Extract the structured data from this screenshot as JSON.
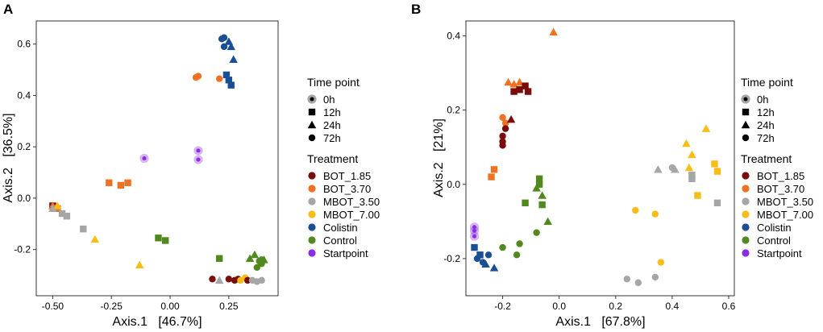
{
  "colors": {
    "BOT_1.85": "#7b0c0c",
    "BOT_3.70": "#ee7222",
    "MBOT_3.50": "#a6a6a6",
    "MBOT_7.00": "#f9bd17",
    "Colistin": "#1a4f96",
    "Control": "#52891f",
    "Startpoint": "#8b2be2"
  },
  "legend": {
    "time_title": "Time point",
    "time_points": [
      {
        "label": "0h",
        "shape": "circle-ring"
      },
      {
        "label": "12h",
        "shape": "square"
      },
      {
        "label": "24h",
        "shape": "triangle"
      },
      {
        "label": "72h",
        "shape": "circle"
      }
    ],
    "treatment_title": "Treatment",
    "treatments": [
      "BOT_1.85",
      "BOT_3.70",
      "MBOT_3.50",
      "MBOT_7.00",
      "Colistin",
      "Control",
      "Startpoint"
    ]
  },
  "chart_data": [
    {
      "type": "scatter",
      "panel": "A",
      "xlabel": "Axis.1   [46.7%]",
      "ylabel": "Axis.2   [36.5%]",
      "xlim": [
        -0.57,
        0.46
      ],
      "ylim": [
        -0.38,
        0.69
      ],
      "xticks": [
        {
          "value": -0.5,
          "label": "-0.50"
        },
        {
          "value": -0.25,
          "label": "-0.25"
        },
        {
          "value": 0.0,
          "label": "0.00"
        },
        {
          "value": 0.25,
          "label": "0.25"
        }
      ],
      "yticks": [
        {
          "value": -0.2,
          "label": "-0.2"
        },
        {
          "value": 0.0,
          "label": "0.0"
        },
        {
          "value": 0.2,
          "label": "0.2"
        },
        {
          "value": 0.4,
          "label": "0.4"
        },
        {
          "value": 0.6,
          "label": "0.6"
        }
      ],
      "points": [
        {
          "x": -0.5,
          "y": -0.03,
          "group": "BOT_1.85",
          "time": "12h"
        },
        {
          "x": -0.49,
          "y": -0.04,
          "group": "BOT_1.85",
          "time": "24h"
        },
        {
          "x": -0.5,
          "y": -0.03,
          "group": "BOT_3.70",
          "time": "24h"
        },
        {
          "x": -0.48,
          "y": -0.04,
          "group": "BOT_3.70",
          "time": "12h"
        },
        {
          "x": -0.48,
          "y": -0.03,
          "group": "MBOT_7.00",
          "time": "24h"
        },
        {
          "x": -0.5,
          "y": -0.04,
          "group": "MBOT_3.50",
          "time": "24h"
        },
        {
          "x": -0.46,
          "y": -0.06,
          "group": "MBOT_3.50",
          "time": "12h"
        },
        {
          "x": -0.44,
          "y": -0.07,
          "group": "MBOT_3.50",
          "time": "12h"
        },
        {
          "x": -0.37,
          "y": -0.12,
          "group": "MBOT_3.50",
          "time": "12h"
        },
        {
          "x": -0.32,
          "y": -0.16,
          "group": "MBOT_7.00",
          "time": "24h"
        },
        {
          "x": -0.13,
          "y": -0.26,
          "group": "MBOT_7.00",
          "time": "24h"
        },
        {
          "x": -0.26,
          "y": 0.06,
          "group": "BOT_3.70",
          "time": "12h"
        },
        {
          "x": -0.21,
          "y": 0.05,
          "group": "BOT_3.70",
          "time": "12h"
        },
        {
          "x": -0.18,
          "y": 0.06,
          "group": "BOT_3.70",
          "time": "12h"
        },
        {
          "x": -0.05,
          "y": -0.155,
          "group": "Control",
          "time": "12h"
        },
        {
          "x": -0.02,
          "y": -0.165,
          "group": "Control",
          "time": "12h"
        },
        {
          "x": -0.11,
          "y": 0.155,
          "group": "Startpoint",
          "time": "0h"
        },
        {
          "x": 0.12,
          "y": 0.185,
          "group": "Startpoint",
          "time": "0h"
        },
        {
          "x": 0.12,
          "y": 0.15,
          "group": "Startpoint",
          "time": "0h"
        },
        {
          "x": 0.11,
          "y": 0.47,
          "group": "BOT_3.70",
          "time": "72h"
        },
        {
          "x": 0.12,
          "y": 0.475,
          "group": "BOT_3.70",
          "time": "72h"
        },
        {
          "x": 0.21,
          "y": 0.465,
          "group": "BOT_3.70",
          "time": "72h"
        },
        {
          "x": 0.22,
          "y": 0.62,
          "group": "Colistin",
          "time": "72h"
        },
        {
          "x": 0.23,
          "y": 0.625,
          "group": "Colistin",
          "time": "72h"
        },
        {
          "x": 0.23,
          "y": 0.59,
          "group": "Colistin",
          "time": "72h"
        },
        {
          "x": 0.25,
          "y": 0.61,
          "group": "Colistin",
          "time": "24h"
        },
        {
          "x": 0.26,
          "y": 0.59,
          "group": "Colistin",
          "time": "24h"
        },
        {
          "x": 0.27,
          "y": 0.54,
          "group": "Colistin",
          "time": "24h"
        },
        {
          "x": 0.24,
          "y": 0.48,
          "group": "Colistin",
          "time": "12h"
        },
        {
          "x": 0.25,
          "y": 0.46,
          "group": "Colistin",
          "time": "12h"
        },
        {
          "x": 0.26,
          "y": 0.44,
          "group": "Colistin",
          "time": "12h"
        },
        {
          "x": 0.21,
          "y": -0.235,
          "group": "Control",
          "time": "12h"
        },
        {
          "x": 0.18,
          "y": -0.315,
          "group": "BOT_1.85",
          "time": "72h"
        },
        {
          "x": 0.21,
          "y": -0.32,
          "group": "MBOT_3.50",
          "time": "24h"
        },
        {
          "x": 0.25,
          "y": -0.315,
          "group": "BOT_1.85",
          "time": "72h"
        },
        {
          "x": 0.275,
          "y": -0.32,
          "group": "BOT_1.85",
          "time": "72h"
        },
        {
          "x": 0.29,
          "y": -0.315,
          "group": "BOT_1.85",
          "time": "72h"
        },
        {
          "x": 0.3,
          "y": -0.32,
          "group": "MBOT_7.00",
          "time": "72h"
        },
        {
          "x": 0.32,
          "y": -0.31,
          "group": "MBOT_7.00",
          "time": "72h"
        },
        {
          "x": 0.33,
          "y": -0.32,
          "group": "BOT_1.85",
          "time": "72h"
        },
        {
          "x": 0.35,
          "y": -0.32,
          "group": "MBOT_3.50",
          "time": "72h"
        },
        {
          "x": 0.37,
          "y": -0.325,
          "group": "MBOT_3.50",
          "time": "72h"
        },
        {
          "x": 0.39,
          "y": -0.32,
          "group": "MBOT_3.50",
          "time": "72h"
        },
        {
          "x": 0.36,
          "y": -0.22,
          "group": "Control",
          "time": "24h"
        },
        {
          "x": 0.38,
          "y": -0.245,
          "group": "Control",
          "time": "72h"
        },
        {
          "x": 0.39,
          "y": -0.24,
          "group": "Control",
          "time": "72h"
        },
        {
          "x": 0.4,
          "y": -0.24,
          "group": "Control",
          "time": "24h"
        },
        {
          "x": 0.37,
          "y": -0.27,
          "group": "Control",
          "time": "72h"
        },
        {
          "x": 0.39,
          "y": -0.255,
          "group": "Control",
          "time": "72h"
        },
        {
          "x": 0.34,
          "y": -0.235,
          "group": "Control",
          "time": "24h"
        }
      ]
    },
    {
      "type": "scatter",
      "panel": "B",
      "xlabel": "Axis.1   [67.8%]",
      "ylabel": "Axis.2   [21%]",
      "xlim": [
        -0.33,
        0.62
      ],
      "ylim": [
        -0.3,
        0.44
      ],
      "xticks": [
        {
          "value": -0.2,
          "label": "-0.2"
        },
        {
          "value": 0.0,
          "label": "0.0"
        },
        {
          "value": 0.2,
          "label": "0.2"
        },
        {
          "value": 0.4,
          "label": "0.4"
        },
        {
          "value": 0.6,
          "label": "0.6"
        }
      ],
      "yticks": [
        {
          "value": -0.2,
          "label": "-0.2"
        },
        {
          "value": 0.0,
          "label": "0.0"
        },
        {
          "value": 0.2,
          "label": "0.2"
        },
        {
          "value": 0.4,
          "label": "0.4"
        }
      ],
      "points": [
        {
          "x": -0.02,
          "y": 0.41,
          "group": "BOT_3.70",
          "time": "24h"
        },
        {
          "x": -0.18,
          "y": 0.275,
          "group": "BOT_3.70",
          "time": "24h"
        },
        {
          "x": -0.16,
          "y": 0.27,
          "group": "BOT_3.70",
          "time": "24h"
        },
        {
          "x": -0.14,
          "y": 0.275,
          "group": "BOT_3.70",
          "time": "24h"
        },
        {
          "x": -0.16,
          "y": 0.25,
          "group": "BOT_1.85",
          "time": "12h"
        },
        {
          "x": -0.14,
          "y": 0.255,
          "group": "BOT_1.85",
          "time": "12h"
        },
        {
          "x": -0.12,
          "y": 0.265,
          "group": "BOT_1.85",
          "time": "12h"
        },
        {
          "x": -0.11,
          "y": 0.25,
          "group": "BOT_1.85",
          "time": "12h"
        },
        {
          "x": -0.2,
          "y": 0.18,
          "group": "BOT_3.70",
          "time": "72h"
        },
        {
          "x": -0.19,
          "y": 0.165,
          "group": "BOT_3.70",
          "time": "72h"
        },
        {
          "x": -0.17,
          "y": 0.175,
          "group": "BOT_1.85",
          "time": "24h"
        },
        {
          "x": -0.19,
          "y": 0.15,
          "group": "BOT_1.85",
          "time": "72h"
        },
        {
          "x": -0.2,
          "y": 0.13,
          "group": "BOT_1.85",
          "time": "72h"
        },
        {
          "x": -0.2,
          "y": 0.115,
          "group": "BOT_1.85",
          "time": "72h"
        },
        {
          "x": -0.2,
          "y": 0.105,
          "group": "BOT_1.85",
          "time": "72h"
        },
        {
          "x": -0.23,
          "y": 0.04,
          "group": "BOT_3.70",
          "time": "12h"
        },
        {
          "x": -0.24,
          "y": 0.02,
          "group": "BOT_3.70",
          "time": "12h"
        },
        {
          "x": -0.07,
          "y": 0.015,
          "group": "Control",
          "time": "12h"
        },
        {
          "x": -0.07,
          "y": 0.0,
          "group": "Control",
          "time": "12h"
        },
        {
          "x": -0.08,
          "y": -0.01,
          "group": "Control",
          "time": "24h"
        },
        {
          "x": -0.06,
          "y": -0.03,
          "group": "Control",
          "time": "24h"
        },
        {
          "x": -0.06,
          "y": -0.055,
          "group": "Control",
          "time": "12h"
        },
        {
          "x": -0.12,
          "y": -0.05,
          "group": "Control",
          "time": "12h"
        },
        {
          "x": -0.04,
          "y": -0.1,
          "group": "Control",
          "time": "24h"
        },
        {
          "x": -0.08,
          "y": -0.13,
          "group": "Control",
          "time": "72h"
        },
        {
          "x": -0.14,
          "y": -0.16,
          "group": "Control",
          "time": "72h"
        },
        {
          "x": -0.2,
          "y": -0.17,
          "group": "Control",
          "time": "72h"
        },
        {
          "x": -0.15,
          "y": -0.19,
          "group": "Control",
          "time": "72h"
        },
        {
          "x": -0.3,
          "y": -0.115,
          "group": "Startpoint",
          "time": "0h"
        },
        {
          "x": -0.3,
          "y": -0.125,
          "group": "Startpoint",
          "time": "0h"
        },
        {
          "x": -0.3,
          "y": -0.14,
          "group": "Startpoint",
          "time": "0h"
        },
        {
          "x": -0.3,
          "y": -0.17,
          "group": "Colistin",
          "time": "12h"
        },
        {
          "x": -0.28,
          "y": -0.19,
          "group": "Colistin",
          "time": "12h"
        },
        {
          "x": -0.25,
          "y": -0.19,
          "group": "Colistin",
          "time": "72h"
        },
        {
          "x": -0.29,
          "y": -0.2,
          "group": "Colistin",
          "time": "72h"
        },
        {
          "x": -0.27,
          "y": -0.21,
          "group": "Colistin",
          "time": "72h"
        },
        {
          "x": -0.26,
          "y": -0.215,
          "group": "Colistin",
          "time": "24h"
        },
        {
          "x": -0.23,
          "y": -0.225,
          "group": "Colistin",
          "time": "24h"
        },
        {
          "x": 0.52,
          "y": 0.15,
          "group": "MBOT_7.00",
          "time": "24h"
        },
        {
          "x": 0.45,
          "y": 0.11,
          "group": "MBOT_7.00",
          "time": "24h"
        },
        {
          "x": 0.47,
          "y": 0.08,
          "group": "MBOT_7.00",
          "time": "24h"
        },
        {
          "x": 0.35,
          "y": 0.04,
          "group": "MBOT_3.50",
          "time": "24h"
        },
        {
          "x": 0.4,
          "y": 0.045,
          "group": "MBOT_3.50",
          "time": "72h"
        },
        {
          "x": 0.41,
          "y": 0.04,
          "group": "MBOT_3.50",
          "time": "24h"
        },
        {
          "x": 0.46,
          "y": 0.045,
          "group": "MBOT_7.00",
          "time": "24h"
        },
        {
          "x": 0.55,
          "y": 0.055,
          "group": "MBOT_7.00",
          "time": "12h"
        },
        {
          "x": 0.56,
          "y": 0.035,
          "group": "MBOT_7.00",
          "time": "12h"
        },
        {
          "x": 0.47,
          "y": 0.025,
          "group": "MBOT_3.50",
          "time": "12h"
        },
        {
          "x": 0.47,
          "y": 0.015,
          "group": "MBOT_3.50",
          "time": "12h"
        },
        {
          "x": 0.49,
          "y": -0.03,
          "group": "MBOT_7.00",
          "time": "12h"
        },
        {
          "x": 0.56,
          "y": -0.05,
          "group": "MBOT_3.50",
          "time": "12h"
        },
        {
          "x": 0.27,
          "y": -0.07,
          "group": "MBOT_7.00",
          "time": "72h"
        },
        {
          "x": 0.34,
          "y": -0.08,
          "group": "MBOT_7.00",
          "time": "72h"
        },
        {
          "x": 0.36,
          "y": -0.21,
          "group": "MBOT_7.00",
          "time": "72h"
        },
        {
          "x": 0.24,
          "y": -0.255,
          "group": "MBOT_3.50",
          "time": "72h"
        },
        {
          "x": 0.28,
          "y": -0.265,
          "group": "MBOT_3.50",
          "time": "72h"
        },
        {
          "x": 0.34,
          "y": -0.25,
          "group": "MBOT_3.50",
          "time": "72h"
        }
      ]
    }
  ]
}
